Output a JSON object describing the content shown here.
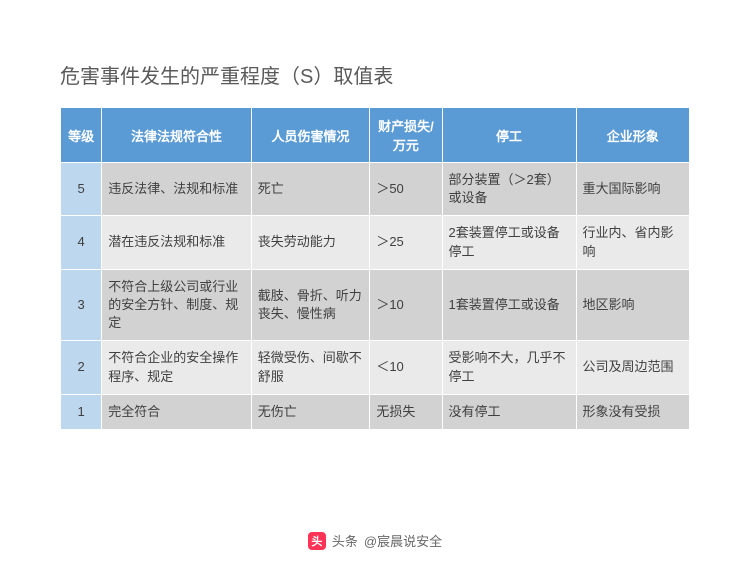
{
  "title": "危害事件发生的严重程度（S）取值表",
  "columns": [
    "等级",
    "法律法规符合性",
    "人员伤害情况",
    "财产损失/万元",
    "停工",
    "企业形象"
  ],
  "rows": [
    [
      "5",
      "违反法律、法规和标准",
      "死亡",
      "＞50",
      "部分装置（＞2套）或设备",
      "重大国际影响"
    ],
    [
      "4",
      "潜在违反法规和标准",
      "丧失劳动能力",
      "＞25",
      "2套装置停工或设备停工",
      "行业内、省内影响"
    ],
    [
      "3",
      "不符合上级公司或行业的安全方针、制度、规定",
      "截肢、骨折、听力丧失、慢性病",
      "＞10",
      "1套装置停工或设备",
      "地区影响"
    ],
    [
      "2",
      "不符合企业的安全操作程序、规定",
      "轻微受伤、间歇不舒服",
      "＜10",
      "受影响不大，几乎不停工",
      "公司及周边范围"
    ],
    [
      "1",
      "完全符合",
      "无伤亡",
      "无损失",
      "没有停工",
      "形象没有受损"
    ]
  ],
  "footer": {
    "label": "头条",
    "author": "@宸晨说安全"
  },
  "colors": {
    "header_bg": "#5b9bd5",
    "header_text": "#ffffff",
    "level_bg": "#bdd7ee",
    "row_odd": "#d2d2d2",
    "row_even": "#eaeaea",
    "text": "#404040",
    "title": "#595959"
  }
}
